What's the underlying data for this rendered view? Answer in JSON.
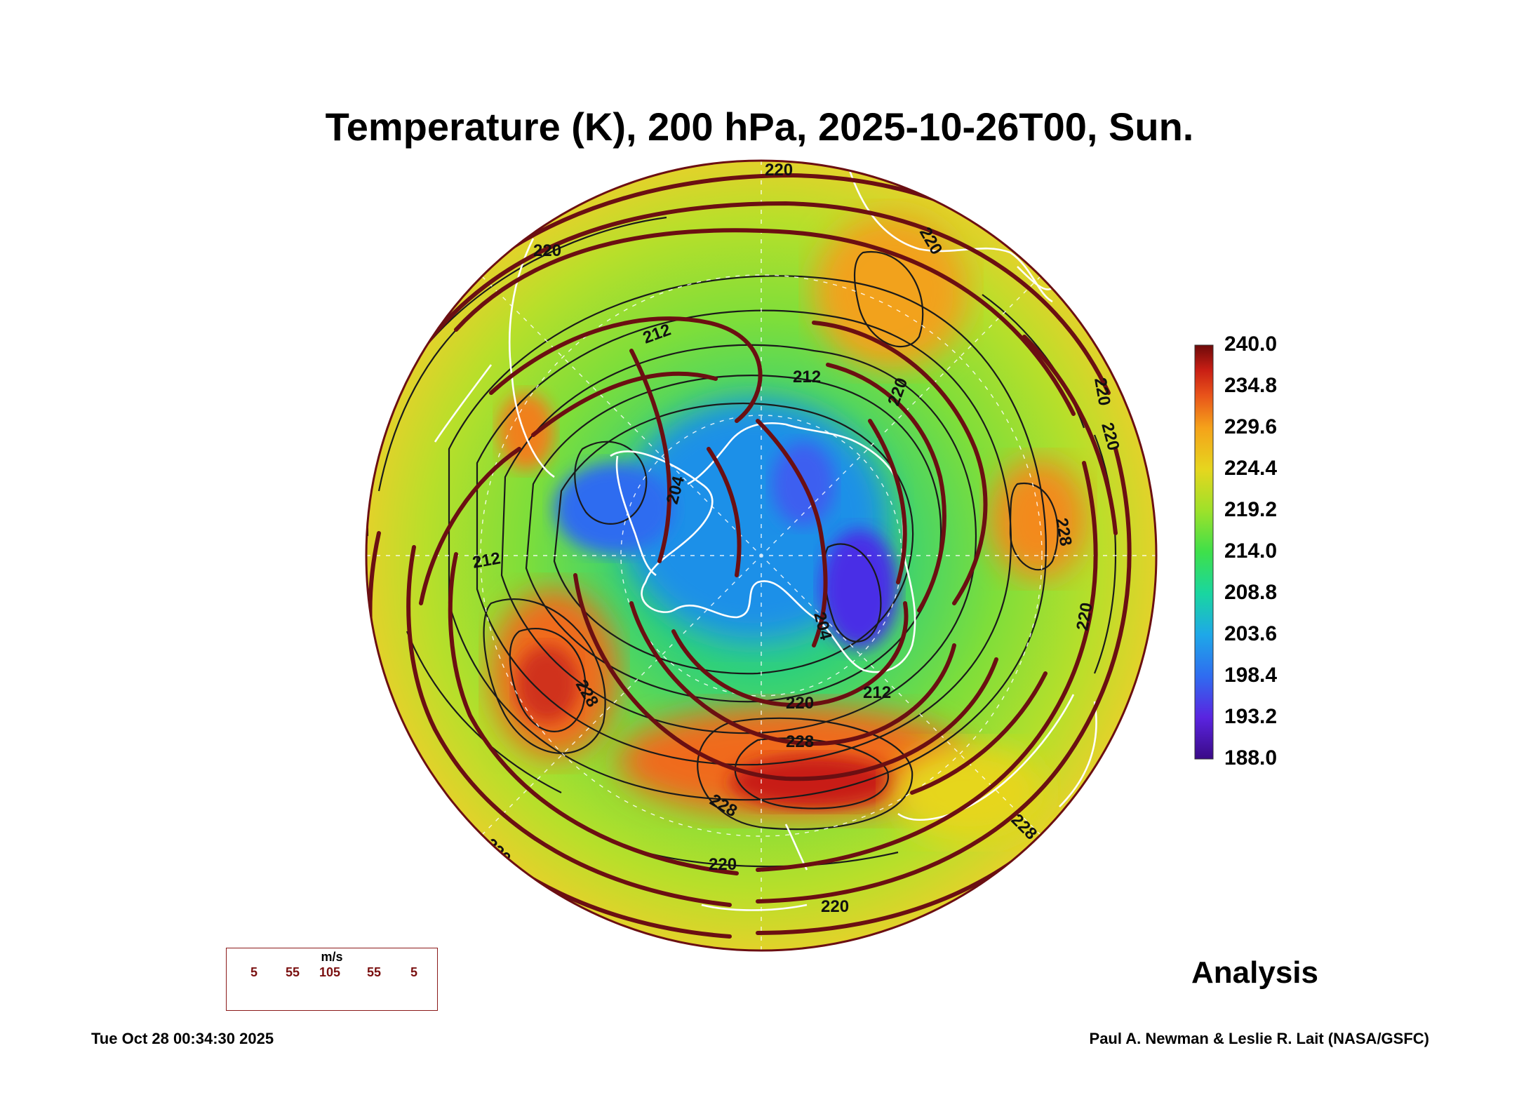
{
  "title": "Temperature (K), 200 hPa, 2025-10-26T00, Sun.",
  "colorbar": {
    "labels": [
      "240.0",
      "234.8",
      "229.6",
      "224.4",
      "219.2",
      "214.0",
      "208.8",
      "203.6",
      "198.4",
      "193.2",
      "188.0"
    ],
    "min": 188.0,
    "max": 240.0,
    "colors": [
      "#3a0a86",
      "#5a24e0",
      "#2f6cf0",
      "#1ea8e8",
      "#19d6a0",
      "#3ee04a",
      "#9ee12a",
      "#e6d61e",
      "#f5a21a",
      "#e8521a",
      "#c81e14",
      "#6e0a0a"
    ]
  },
  "contour_labels": [
    "220",
    "220",
    "220",
    "220",
    "220",
    "220",
    "220",
    "220",
    "220",
    "220",
    "220",
    "220",
    "212",
    "212",
    "212",
    "212",
    "204",
    "204",
    "228",
    "228",
    "228",
    "228",
    "228",
    "220"
  ],
  "wind_legend": {
    "unit": "m/s",
    "speeds": [
      "5",
      "55",
      "105",
      "55",
      "5"
    ]
  },
  "analysis_label": "Analysis",
  "timestamp": "Tue Oct 28 00:34:30 2025",
  "credit": "Paul A. Newman & Leslie R. Lait (NASA/GSFC)",
  "style": {
    "streamline_color": "#6b0f12",
    "contour_color": "#1a1a1a",
    "coast_color": "#ffffff"
  }
}
